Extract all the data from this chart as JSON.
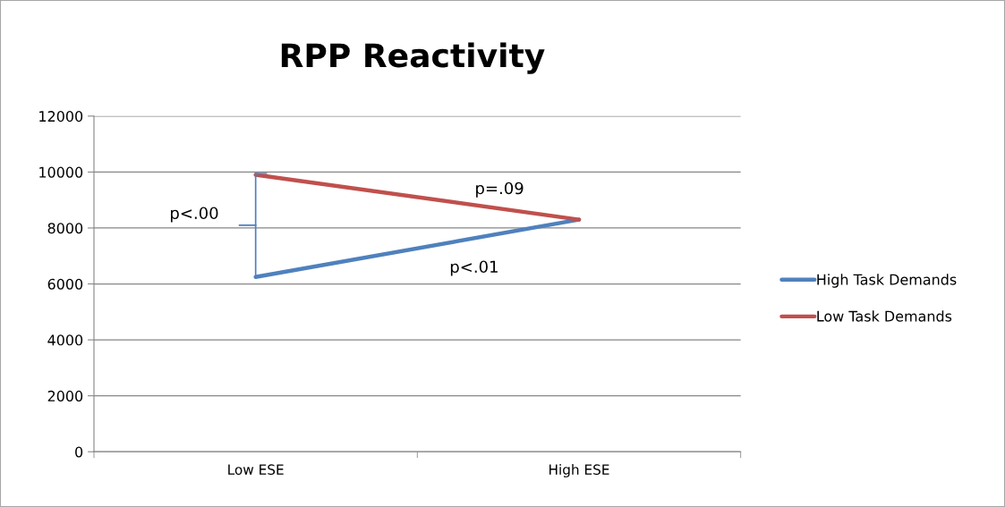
{
  "chart_data": {
    "type": "line",
    "title": "RPP Reactivity",
    "categories": [
      "Low ESE",
      "High ESE"
    ],
    "series": [
      {
        "name": "High Task Demands",
        "color": "#4f81bd",
        "values": [
          6250,
          8300
        ]
      },
      {
        "name": "Low Task Demands",
        "color": "#c0504d",
        "values": [
          9900,
          8300
        ]
      }
    ],
    "ylim": [
      0,
      12000
    ],
    "yticks": [
      0,
      2000,
      4000,
      6000,
      8000,
      10000,
      12000
    ],
    "grid": "y",
    "legend": "right",
    "marker": "none",
    "line_style": "solid",
    "annotations": [
      "p<.00",
      "p=.09",
      "p<.01"
    ]
  }
}
